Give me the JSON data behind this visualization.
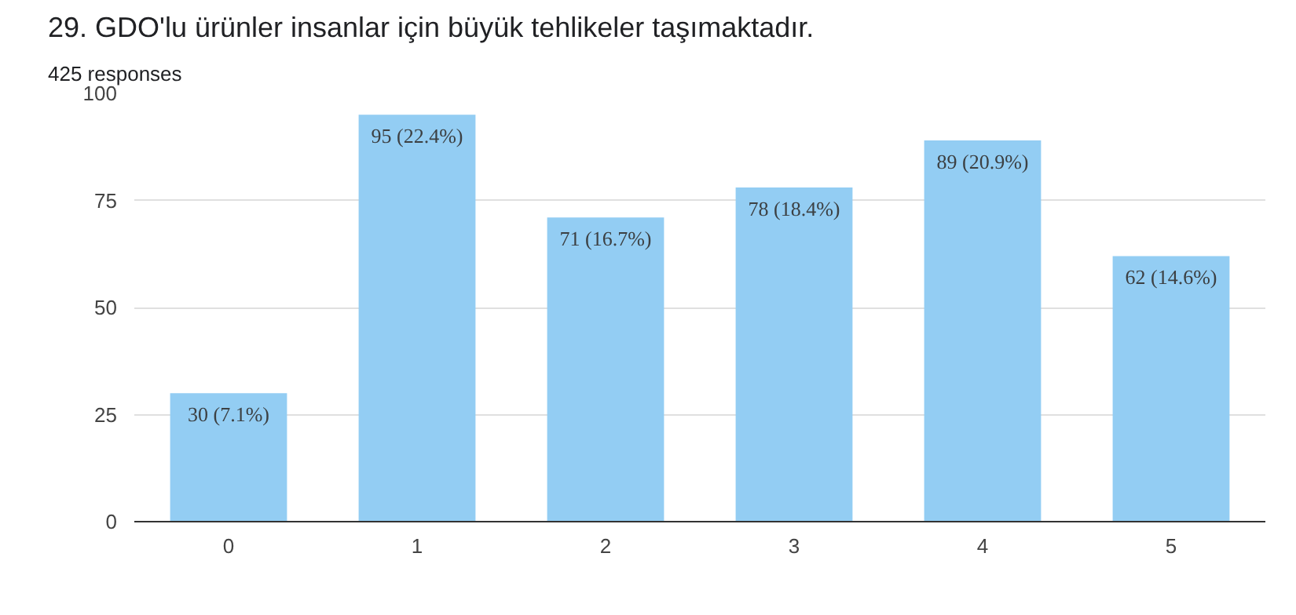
{
  "chart_data": {
    "type": "bar",
    "title": "29. GDO'lu ürünler insanlar için büyük tehlikeler taşımaktadır.",
    "subtitle": "425 responses",
    "categories": [
      "0",
      "1",
      "2",
      "3",
      "4",
      "5"
    ],
    "values": [
      30,
      95,
      71,
      78,
      89,
      62
    ],
    "value_labels": [
      "30 (7.1%)",
      "95 (22.4%)",
      "71 (16.7%)",
      "78 (18.4%)",
      "89 (20.9%)",
      "62 (14.6%)"
    ],
    "color": "#93cdf3",
    "ylim": [
      0,
      100
    ],
    "yticks": [
      0,
      25,
      50,
      75,
      100
    ],
    "grid": "y"
  }
}
